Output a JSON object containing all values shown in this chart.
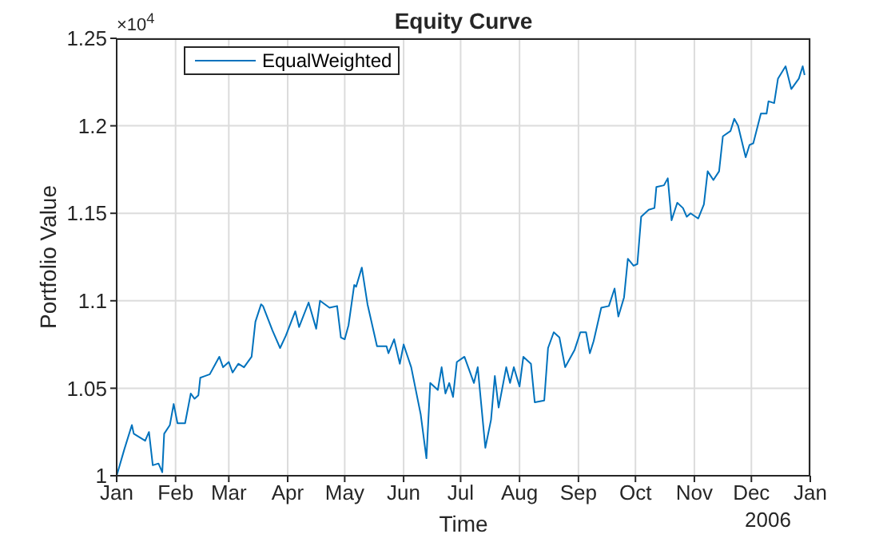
{
  "chart_data": {
    "type": "line",
    "title": "Equity Curve",
    "xlabel": "Time",
    "ylabel": "Portfolio Value",
    "annotations": [
      "×10$^{4}$",
      "2006"
    ],
    "xlim": [
      "2006-01-01",
      "2007-01-01"
    ],
    "xticks": [
      {
        "value": "2006-01-01",
        "label": "Jan"
      },
      {
        "value": "2006-02-01",
        "label": "Feb"
      },
      {
        "value": "2006-03-01",
        "label": "Mar"
      },
      {
        "value": "2006-04-01",
        "label": "Apr"
      },
      {
        "value": "2006-05-01",
        "label": "May"
      },
      {
        "value": "2006-06-01",
        "label": "Jun"
      },
      {
        "value": "2006-07-01",
        "label": "Jul"
      },
      {
        "value": "2006-08-01",
        "label": "Aug"
      },
      {
        "value": "2006-09-01",
        "label": "Sep"
      },
      {
        "value": "2006-10-01",
        "label": "Oct"
      },
      {
        "value": "2006-11-01",
        "label": "Nov"
      },
      {
        "value": "2006-12-01",
        "label": "Dec"
      },
      {
        "value": "2007-01-01",
        "label": "Jan"
      }
    ],
    "ylim": [
      1,
      1.25
    ],
    "yticks": [
      1,
      1.05,
      1.1,
      1.15,
      1.2,
      1.25
    ],
    "grid": true,
    "legend": "top left",
    "x": [
      "2006-01-01",
      "2006-01-05",
      "2006-01-09",
      "2006-01-10",
      "2006-01-16",
      "2006-01-18",
      "2006-01-20",
      "2006-01-23",
      "2006-01-25",
      "2006-01-26",
      "2006-01-29",
      "2006-01-31",
      "2006-02-02",
      "2006-02-06",
      "2006-02-09",
      "2006-02-11",
      "2006-02-13",
      "2006-02-14",
      "2006-02-19",
      "2006-02-22",
      "2006-02-24",
      "2006-02-26",
      "2006-03-01",
      "2006-03-03",
      "2006-03-06",
      "2006-03-09",
      "2006-03-13",
      "2006-03-15",
      "2006-03-18",
      "2006-03-19",
      "2006-03-24",
      "2006-03-28",
      "2006-03-31",
      "2006-04-05",
      "2006-04-07",
      "2006-04-12",
      "2006-04-16",
      "2006-04-18",
      "2006-04-23",
      "2006-04-27",
      "2006-04-29",
      "2006-05-01",
      "2006-05-03",
      "2006-05-06",
      "2006-05-07",
      "2006-05-10",
      "2006-05-13",
      "2006-05-18",
      "2006-05-23",
      "2006-05-24",
      "2006-05-27",
      "2006-05-30",
      "2006-06-01",
      "2006-06-05",
      "2006-06-10",
      "2006-06-13",
      "2006-06-15",
      "2006-06-19",
      "2006-06-21",
      "2006-06-23",
      "2006-06-25",
      "2006-06-27",
      "2006-06-29",
      "2006-07-03",
      "2006-07-05",
      "2006-07-08",
      "2006-07-10",
      "2006-07-14",
      "2006-07-17",
      "2006-07-19",
      "2006-07-21",
      "2006-07-25",
      "2006-07-27",
      "2006-07-29",
      "2006-08-01",
      "2006-08-03",
      "2006-08-07",
      "2006-08-09",
      "2006-08-14",
      "2006-08-16",
      "2006-08-19",
      "2006-08-22",
      "2006-08-25",
      "2006-08-30",
      "2006-09-02",
      "2006-09-05",
      "2006-09-07",
      "2006-09-09",
      "2006-09-13",
      "2006-09-17",
      "2006-09-20",
      "2006-09-22",
      "2006-09-25",
      "2006-09-27",
      "2006-09-30",
      "2006-10-02",
      "2006-10-04",
      "2006-10-08",
      "2006-10-11",
      "2006-10-12",
      "2006-10-16",
      "2006-10-18",
      "2006-10-20",
      "2006-10-23",
      "2006-10-26",
      "2006-10-28",
      "2006-10-30",
      "2006-11-03",
      "2006-11-06",
      "2006-11-08",
      "2006-11-11",
      "2006-11-14",
      "2006-11-16",
      "2006-11-20",
      "2006-11-22",
      "2006-11-24",
      "2006-11-28",
      "2006-11-30",
      "2006-12-02",
      "2006-12-06",
      "2006-12-09",
      "2006-12-10",
      "2006-12-13",
      "2006-12-15",
      "2006-12-19",
      "2006-12-22",
      "2006-12-26",
      "2006-12-28",
      "2006-12-29"
    ],
    "series": [
      {
        "name": "EqualWeighted",
        "color": "#0072bd",
        "values": [
          1.0,
          1.015,
          1.029,
          1.024,
          1.02,
          1.025,
          1.006,
          1.007,
          1.002,
          1.024,
          1.029,
          1.041,
          1.03,
          1.03,
          1.047,
          1.044,
          1.046,
          1.056,
          1.058,
          1.064,
          1.068,
          1.062,
          1.065,
          1.059,
          1.064,
          1.062,
          1.068,
          1.088,
          1.098,
          1.097,
          1.083,
          1.073,
          1.08,
          1.094,
          1.085,
          1.099,
          1.084,
          1.1,
          1.096,
          1.097,
          1.079,
          1.078,
          1.086,
          1.109,
          1.108,
          1.119,
          1.098,
          1.074,
          1.074,
          1.07,
          1.078,
          1.064,
          1.075,
          1.062,
          1.035,
          1.01,
          1.053,
          1.049,
          1.062,
          1.047,
          1.053,
          1.045,
          1.065,
          1.068,
          1.062,
          1.053,
          1.062,
          1.016,
          1.032,
          1.057,
          1.039,
          1.062,
          1.053,
          1.062,
          1.051,
          1.068,
          1.064,
          1.042,
          1.043,
          1.073,
          1.082,
          1.079,
          1.062,
          1.072,
          1.082,
          1.082,
          1.07,
          1.077,
          1.096,
          1.097,
          1.107,
          1.091,
          1.102,
          1.124,
          1.12,
          1.121,
          1.148,
          1.152,
          1.153,
          1.165,
          1.166,
          1.17,
          1.146,
          1.156,
          1.153,
          1.148,
          1.15,
          1.147,
          1.155,
          1.174,
          1.169,
          1.174,
          1.194,
          1.197,
          1.204,
          1.2,
          1.182,
          1.189,
          1.19,
          1.207,
          1.207,
          1.214,
          1.213,
          1.227,
          1.234,
          1.221,
          1.227,
          1.234,
          1.229
        ]
      }
    ]
  }
}
